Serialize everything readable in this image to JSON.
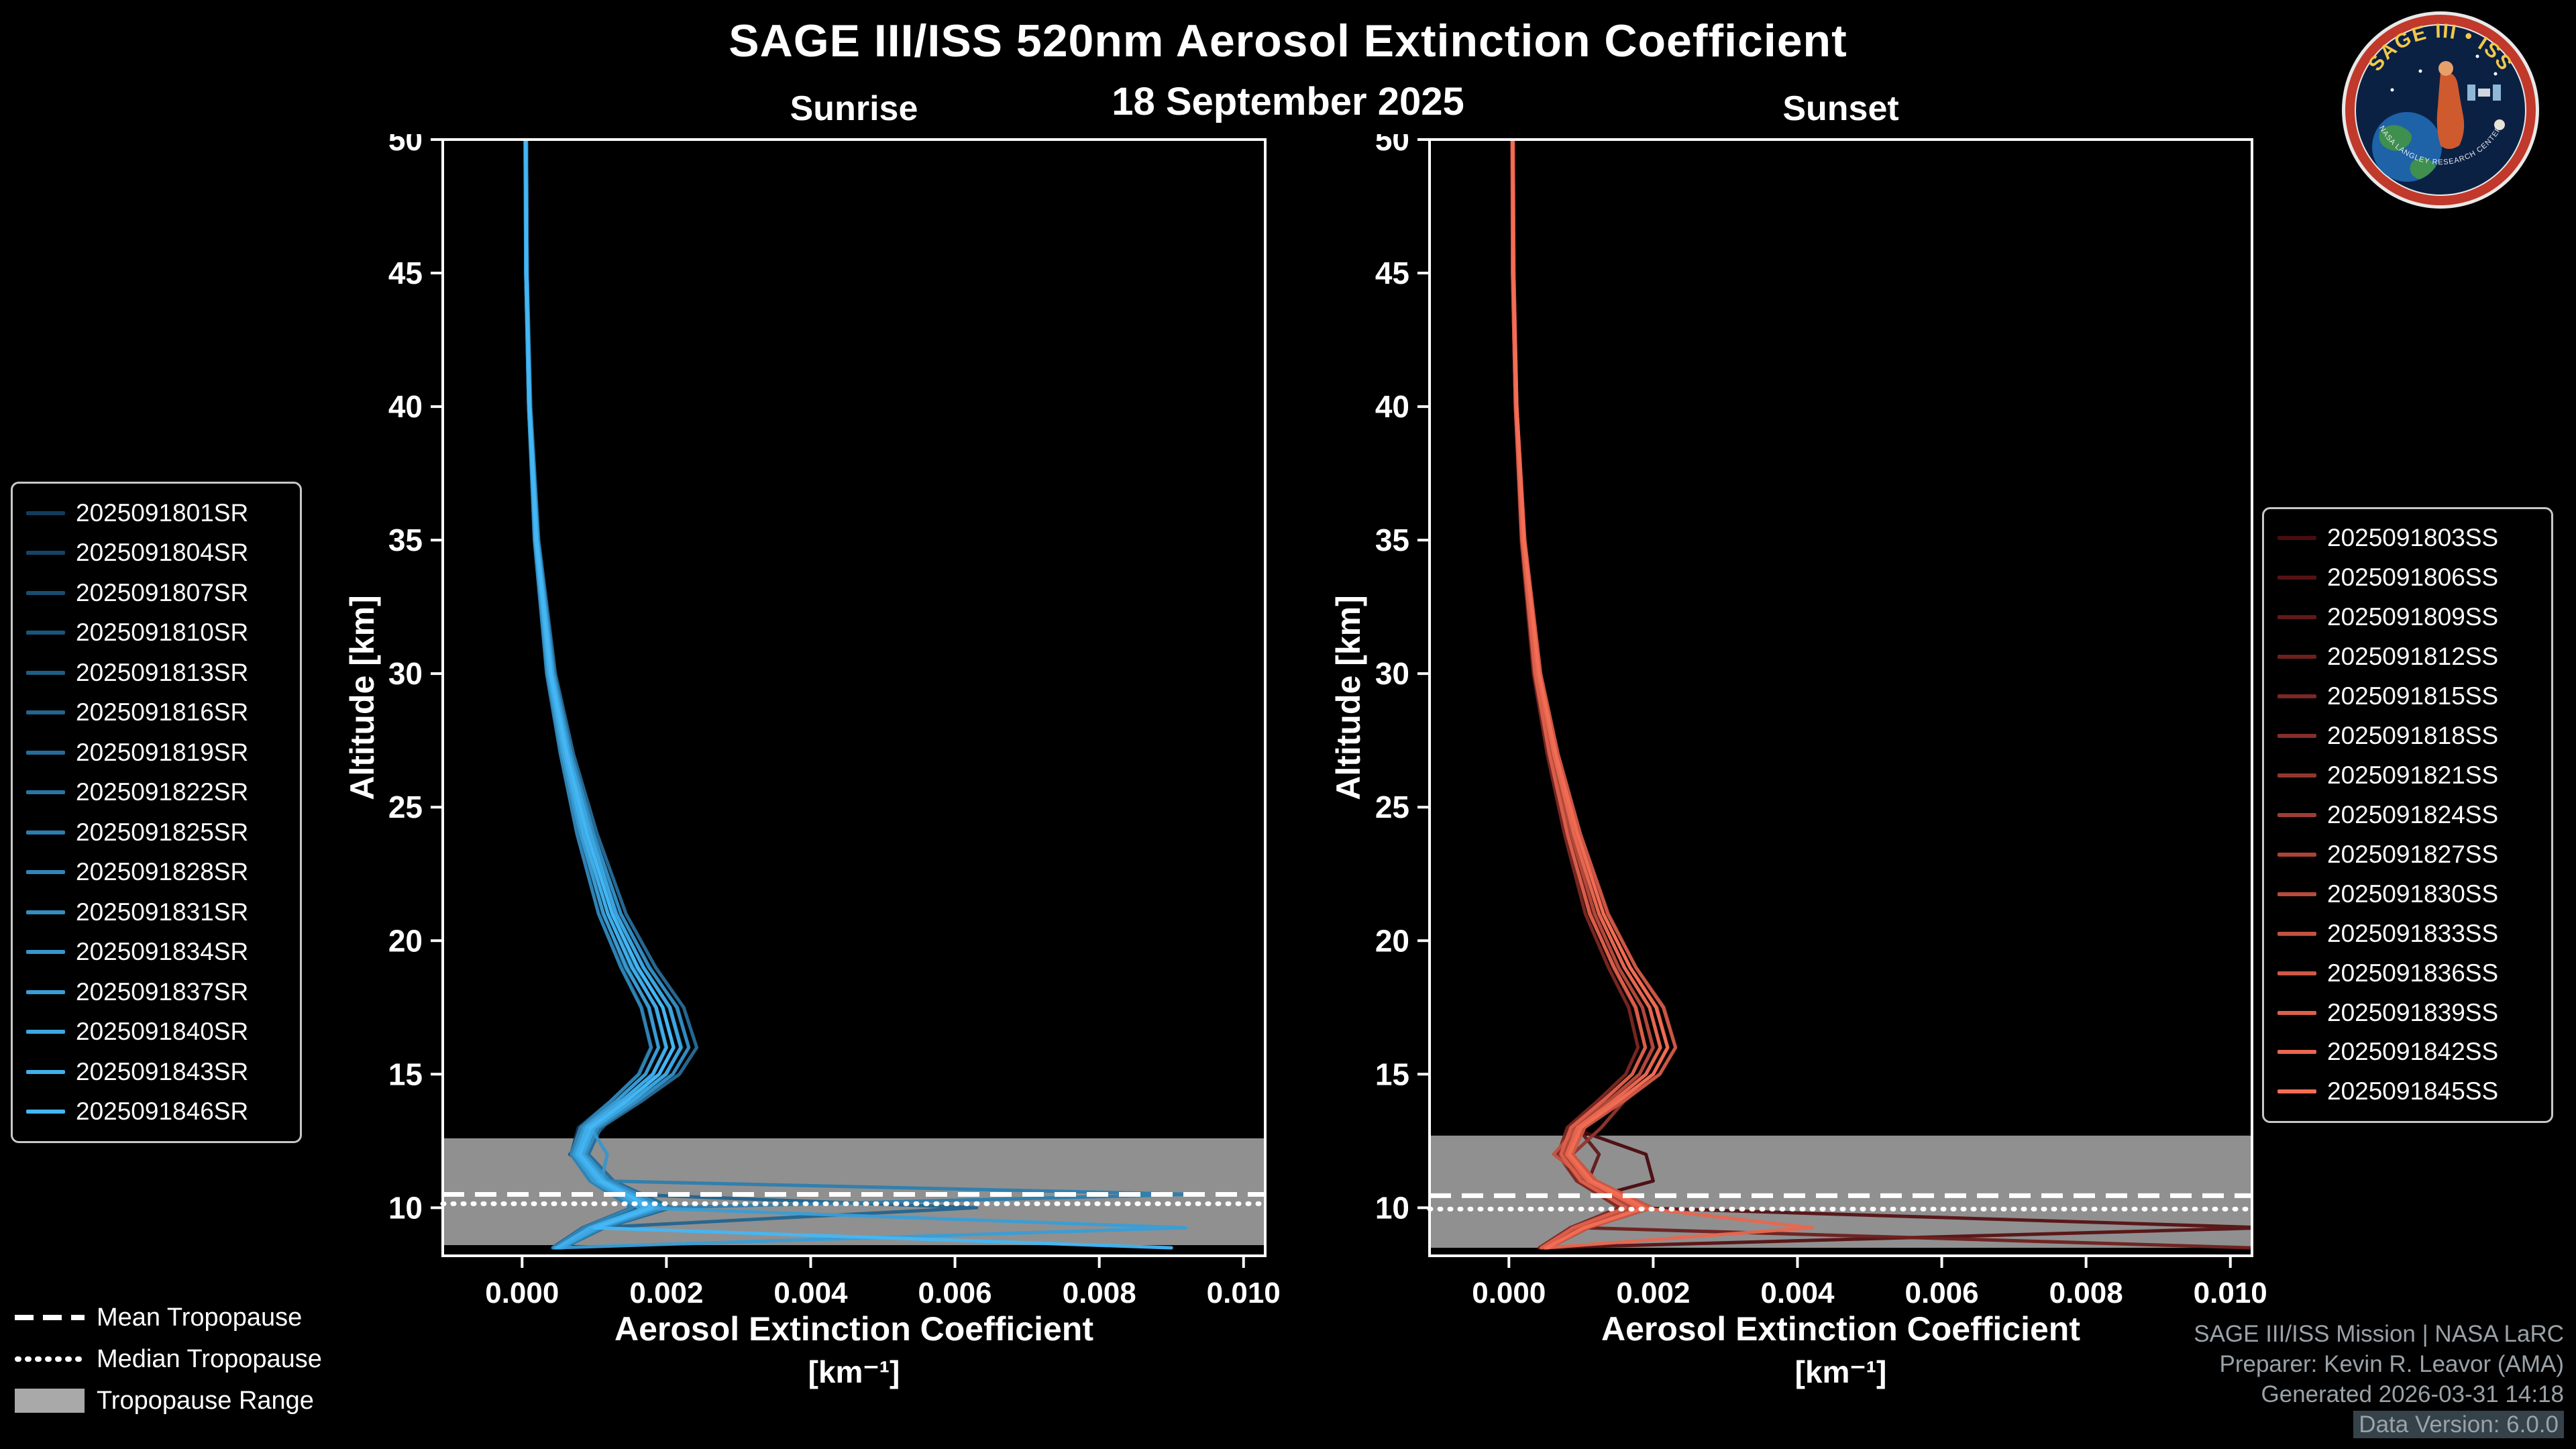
{
  "header": {
    "title": "SAGE III/ISS 520nm Aerosol Extinction Coefficient",
    "date": "18 September 2025"
  },
  "logo": {
    "title": "SAGE III • ISS",
    "bottom_text": "NASA LANGLEY RESEARCH CENTER"
  },
  "tropopause_legend": {
    "items": [
      {
        "label": "Mean Tropopause",
        "style": "dashed"
      },
      {
        "label": "Median Tropopause",
        "style": "dotted"
      },
      {
        "label": "Tropopause Range",
        "style": "filled"
      }
    ],
    "range_color": "#a9a9a9"
  },
  "footer": {
    "lines": [
      "SAGE III/ISS Mission | NASA LaRC",
      "Preparer: Kevin R. Leavor (AMA)",
      "Generated 2026-03-31 14:18",
      "Data Version: 6.0.0"
    ]
  },
  "chart_data": [
    {
      "type": "line",
      "title": "Sunrise",
      "xlabel": "Aerosol Extinction Coefficient",
      "xunit": "[km⁻¹]",
      "ylabel": "Altitude [km]",
      "xlim": [
        -0.0011,
        0.0103
      ],
      "ylim": [
        8.2,
        50
      ],
      "xticks": [
        0.0,
        0.002,
        0.004,
        0.006,
        0.008,
        0.01
      ],
      "xtick_labels": [
        "0.000",
        "0.002",
        "0.004",
        "0.006",
        "0.008",
        "0.010"
      ],
      "yticks": [
        10,
        15,
        20,
        25,
        30,
        35,
        40,
        45,
        50
      ],
      "ytick_labels": [
        "10",
        "15",
        "20",
        "25",
        "30",
        "35",
        "40",
        "45",
        "50"
      ],
      "grid": false,
      "tropopause": {
        "mean": 10.5,
        "median": 10.15,
        "range": [
          8.6,
          12.6
        ]
      },
      "altitudes": [
        50,
        45,
        40,
        35,
        30,
        27,
        24,
        21,
        19,
        17.5,
        16,
        15,
        14,
        13,
        12,
        11,
        10.5,
        10,
        9.25,
        8.5
      ],
      "series": [
        {
          "name": "2025091801SR",
          "color": "#123c5c",
          "values": [
            4e-05,
            5e-05,
            9e-05,
            0.00017,
            0.00034,
            0.00053,
            0.00077,
            0.00106,
            0.00139,
            0.00166,
            0.00178,
            0.00161,
            0.00123,
            0.00078,
            0.00068,
            0.00096,
            0.00125,
            0.00152,
            0.00084,
            0.00042
          ]
        },
        {
          "name": "2025091804SR",
          "color": "#154466",
          "values": [
            5e-05,
            6e-05,
            0.0001,
            0.00019,
            0.00038,
            0.00059,
            0.00086,
            0.00119,
            0.00155,
            0.00185,
            0.00199,
            0.00181,
            0.00138,
            0.00112,
            0.00076,
            0.00107,
            0.00139,
            0.00172,
            0.00094,
            0.00047
          ]
        },
        {
          "name": "2025091807SR",
          "color": "#194c70",
          "values": [
            5e-05,
            6e-05,
            0.00011,
            0.00021,
            0.00042,
            0.00065,
            0.00094,
            0.00131,
            0.00169,
            0.00205,
            0.00221,
            0.00199,
            0.00152,
            0.00099,
            0.00085,
            0.00117,
            0.00153,
            0.00189,
            0.00104,
            0.00052
          ]
        },
        {
          "name": "2025091810SR",
          "color": "#1c557b",
          "values": [
            6e-05,
            7e-05,
            0.00011,
            0.00022,
            0.00044,
            0.00068,
            0.00099,
            0.00137,
            0.00177,
            0.00214,
            0.00231,
            0.00209,
            0.00159,
            0.00104,
            0.00066,
            0.00121,
            0.00159,
            0.00197,
            0.00109,
            0.00054
          ]
        },
        {
          "name": "2025091813SR",
          "color": "#1f5d85",
          "values": [
            5e-05,
            5e-05,
            9e-05,
            0.00018,
            0.00036,
            0.00056,
            0.00081,
            0.00112,
            0.00146,
            0.00175,
            0.00189,
            0.00171,
            0.0013,
            0.00085,
            0.00072,
            0.00101,
            0.00131,
            0.00162,
            0.00089,
            0.00045
          ]
        },
        {
          "name": "2025091816SR",
          "color": "#23658f",
          "values": [
            5e-05,
            6e-05,
            0.0001,
            0.0002,
            0.0004,
            0.00062,
            0.0009,
            0.00125,
            0.00161,
            0.00195,
            0.0021,
            0.0019,
            0.00145,
            0.00094,
            0.0008,
            0.00111,
            0.00146,
            0.0063,
            0.00099,
            0.0005
          ]
        },
        {
          "name": "2025091819SR",
          "color": "#266d99",
          "values": [
            6e-05,
            7e-05,
            0.00012,
            0.00023,
            0.00046,
            0.00071,
            0.00104,
            0.00144,
            0.00185,
            0.00224,
            0.00242,
            0.00218,
            0.00166,
            0.00109,
            0.00092,
            0.00127,
            0.00167,
            0.00207,
            0.00114,
            0.00057
          ]
        },
        {
          "name": "2025091822SR",
          "color": "#2975a3",
          "values": [
            5e-05,
            6e-05,
            0.0001,
            0.00019,
            0.00038,
            0.00059,
            0.00086,
            0.00119,
            0.00153,
            0.00185,
            0.002,
            0.00182,
            0.00158,
            0.0009,
            0.00077,
            0.00106,
            0.00138,
            0.00171,
            0.00095,
            0.00048
          ]
        },
        {
          "name": "2025091825SR",
          "color": "#2d7eae",
          "values": [
            5e-05,
            6e-05,
            0.00011,
            0.00021,
            0.00042,
            0.00065,
            0.00095,
            0.00131,
            0.00168,
            0.00204,
            0.0022,
            0.002,
            0.00152,
            0.001,
            0.00084,
            0.00116,
            0.0093,
            0.00189,
            0.00105,
            0.00052
          ]
        },
        {
          "name": "2025091828SR",
          "color": "#3086b8",
          "values": [
            4e-05,
            5e-05,
            9e-05,
            0.00017,
            0.00034,
            0.00053,
            0.00076,
            0.00106,
            0.00137,
            0.00165,
            0.00179,
            0.00162,
            0.00123,
            0.00081,
            0.00068,
            0.00094,
            0.00123,
            0.00153,
            0.00085,
            0.00043
          ]
        },
        {
          "name": "2025091831SR",
          "color": "#338ec2",
          "values": [
            6e-05,
            7e-05,
            0.00011,
            0.00022,
            0.00044,
            0.00068,
            0.00099,
            0.00137,
            0.00176,
            0.00215,
            0.00231,
            0.00209,
            0.0016,
            0.00105,
            0.00088,
            0.00121,
            0.0016,
            0.00198,
            0.0011,
            0.00055
          ]
        },
        {
          "name": "2025091834SR",
          "color": "#3796cc",
          "values": [
            5e-05,
            6e-05,
            0.0001,
            0.0002,
            0.0004,
            0.00062,
            0.0009,
            0.00125,
            0.0016,
            0.00195,
            0.0021,
            0.0019,
            0.00145,
            0.00095,
            0.00118,
            0.0011,
            0.00145,
            0.0018,
            0.001,
            0.0005
          ]
        },
        {
          "name": "2025091837SR",
          "color": "#3a9ed6",
          "values": [
            5e-05,
            5e-05,
            9e-05,
            0.00018,
            0.00036,
            0.00056,
            0.00081,
            0.00113,
            0.00144,
            0.00176,
            0.00189,
            0.00171,
            0.00131,
            0.00086,
            0.00072,
            0.00099,
            0.00131,
            0.00162,
            0.0092,
            0.00045
          ]
        },
        {
          "name": "2025091840SR",
          "color": "#3da7e1",
          "values": [
            5e-05,
            6e-05,
            0.00011,
            0.00021,
            0.00042,
            0.00065,
            0.00095,
            0.0013,
            0.00168,
            0.00205,
            0.0022,
            0.00199,
            0.00153,
            0.001,
            0.00084,
            0.00115,
            0.00152,
            0.00188,
            0.00104,
            0.00053
          ]
        },
        {
          "name": "2025091843SR",
          "color": "#41afeb",
          "values": [
            5e-05,
            6e-05,
            0.0001,
            0.00019,
            0.00038,
            0.00059,
            0.00085,
            0.00119,
            0.00152,
            0.00186,
            0.002,
            0.00181,
            0.00138,
            0.0009,
            0.00076,
            0.00105,
            0.00138,
            0.00171,
            0.00094,
            0.00048
          ]
        },
        {
          "name": "2025091846SR",
          "color": "#44b7f5",
          "values": [
            5e-05,
            6e-05,
            0.0001,
            0.0002,
            0.0004,
            0.00062,
            0.0009,
            0.00125,
            0.0016,
            0.00195,
            0.0021,
            0.0019,
            0.00145,
            0.00095,
            0.0008,
            0.0011,
            0.00145,
            0.0018,
            0.001,
            0.009
          ]
        }
      ]
    },
    {
      "type": "line",
      "title": "Sunset",
      "xlabel": "Aerosol Extinction Coefficient",
      "xunit": "[km⁻¹]",
      "ylabel": "Altitude [km]",
      "xlim": [
        -0.0011,
        0.0103
      ],
      "ylim": [
        8.2,
        50
      ],
      "xticks": [
        0.0,
        0.002,
        0.004,
        0.006,
        0.008,
        0.01
      ],
      "xtick_labels": [
        "0.000",
        "0.002",
        "0.004",
        "0.006",
        "0.008",
        "0.010"
      ],
      "yticks": [
        10,
        15,
        20,
        25,
        30,
        35,
        40,
        45,
        50
      ],
      "ytick_labels": [
        "10",
        "15",
        "20",
        "25",
        "30",
        "35",
        "40",
        "45",
        "50"
      ],
      "grid": false,
      "tropopause": {
        "mean": 10.45,
        "median": 9.95,
        "range": [
          8.5,
          12.7
        ]
      },
      "altitudes": [
        50,
        45,
        40,
        35,
        30,
        27,
        24,
        21,
        19,
        17.5,
        16,
        15,
        14,
        13,
        12,
        11,
        10.5,
        10,
        9.25,
        8.5
      ],
      "series": [
        {
          "name": "2025091803SS",
          "color": "#4a0b0f",
          "values": [
            5e-05,
            5e-05,
            9e-05,
            0.00018,
            0.00036,
            0.00056,
            0.00081,
            0.00112,
            0.00145,
            0.00175,
            0.00189,
            0.00171,
            0.0013,
            0.00086,
            0.0019,
            0.002,
            0.00131,
            0.00162,
            0.0009,
            0.00045
          ]
        },
        {
          "name": "2025091806SS",
          "color": "#561214",
          "values": [
            5e-05,
            6e-05,
            0.0001,
            0.00019,
            0.00038,
            0.00059,
            0.00086,
            0.00118,
            0.00152,
            0.00185,
            0.00199,
            0.00181,
            0.00138,
            0.0009,
            0.00077,
            0.00105,
            0.00139,
            0.00171,
            0.0105,
            0.00047
          ]
        },
        {
          "name": "2025091809SS",
          "color": "#621919",
          "values": [
            5e-05,
            6e-05,
            0.0001,
            0.0002,
            0.0004,
            0.00062,
            0.0009,
            0.00125,
            0.0016,
            0.00195,
            0.0021,
            0.0019,
            0.00145,
            0.00095,
            0.00125,
            0.0011,
            0.00145,
            0.0018,
            0.001,
            0.0005
          ]
        },
        {
          "name": "2025091812SS",
          "color": "#6e201e",
          "values": [
            5e-05,
            6e-05,
            0.00011,
            0.00021,
            0.00042,
            0.00065,
            0.00094,
            0.00131,
            0.00168,
            0.00204,
            0.0022,
            0.002,
            0.00152,
            0.001,
            0.00084,
            0.00116,
            0.00152,
            0.00189,
            0.00105,
            0.0103
          ]
        },
        {
          "name": "2025091815SS",
          "color": "#7b2723",
          "values": [
            4e-05,
            5e-05,
            9e-05,
            0.00017,
            0.00034,
            0.00053,
            0.00077,
            0.00106,
            0.00138,
            0.00166,
            0.00179,
            0.00162,
            0.00123,
            0.00081,
            0.00068,
            0.00094,
            0.00124,
            0.00153,
            0.00085,
            0.00042
          ]
        },
        {
          "name": "2025091818SS",
          "color": "#872e28",
          "values": [
            5e-05,
            6e-05,
            0.0001,
            0.0002,
            0.0004,
            0.00062,
            0.0009,
            0.00125,
            0.0016,
            0.00195,
            0.0021,
            0.0019,
            0.00145,
            0.00095,
            0.0008,
            0.0011,
            0.00145,
            0.0018,
            0.001,
            0.0005
          ]
        },
        {
          "name": "2025091821SS",
          "color": "#93362d",
          "values": [
            6e-05,
            7e-05,
            0.00011,
            0.00022,
            0.00044,
            0.00068,
            0.00099,
            0.00138,
            0.00176,
            0.00215,
            0.00231,
            0.00209,
            0.0016,
            0.00128,
            0.00088,
            0.00121,
            0.00159,
            0.00198,
            0.0011,
            0.00055
          ]
        },
        {
          "name": "2025091824SS",
          "color": "#9f3d32",
          "values": [
            5e-05,
            5e-05,
            9e-05,
            0.00018,
            0.00036,
            0.00056,
            0.00081,
            0.00113,
            0.00145,
            0.00175,
            0.00189,
            0.00171,
            0.00131,
            0.00086,
            0.00072,
            0.00099,
            0.0013,
            0.00162,
            0.0009,
            0.00045
          ]
        },
        {
          "name": "2025091827SS",
          "color": "#ab4437",
          "values": [
            5e-05,
            6e-05,
            0.00011,
            0.00021,
            0.00042,
            0.00065,
            0.00095,
            0.00131,
            0.00168,
            0.00205,
            0.0022,
            0.002,
            0.00152,
            0.001,
            0.00084,
            0.00116,
            0.00152,
            0.00189,
            0.00104,
            0.00052
          ]
        },
        {
          "name": "2025091830SS",
          "color": "#b74b3c",
          "values": [
            5e-05,
            6e-05,
            0.0001,
            0.00019,
            0.00038,
            0.00059,
            0.00086,
            0.00119,
            0.00152,
            0.00185,
            0.002,
            0.00181,
            0.00138,
            0.0009,
            0.00076,
            0.00105,
            0.00138,
            0.00171,
            0.00094,
            0.00048
          ]
        },
        {
          "name": "2025091833SS",
          "color": "#c35241",
          "values": [
            5e-05,
            6e-05,
            0.0001,
            0.0002,
            0.0004,
            0.00062,
            0.0009,
            0.00125,
            0.0016,
            0.00195,
            0.0021,
            0.0019,
            0.00145,
            0.00095,
            0.00062,
            0.0011,
            0.00145,
            0.0018,
            0.001,
            0.0005
          ]
        },
        {
          "name": "2025091836SS",
          "color": "#cf5946",
          "values": [
            6e-05,
            7e-05,
            0.00011,
            0.00022,
            0.00044,
            0.00068,
            0.00099,
            0.00137,
            0.00176,
            0.00214,
            0.00231,
            0.00209,
            0.00159,
            0.00105,
            0.00088,
            0.00121,
            0.00159,
            0.00197,
            0.00109,
            0.00055
          ]
        },
        {
          "name": "2025091839SS",
          "color": "#dc604b",
          "values": [
            5e-05,
            5e-05,
            9e-05,
            0.00018,
            0.00036,
            0.00056,
            0.00081,
            0.00112,
            0.00146,
            0.00176,
            0.00189,
            0.00171,
            0.0013,
            0.00086,
            0.00072,
            0.001,
            0.00131,
            0.00162,
            0.00089,
            0.00045
          ]
        },
        {
          "name": "2025091842SS",
          "color": "#e86750",
          "values": [
            5e-05,
            6e-05,
            0.0001,
            0.0002,
            0.0004,
            0.00062,
            0.0009,
            0.00125,
            0.0016,
            0.00195,
            0.0021,
            0.0019,
            0.00145,
            0.00095,
            0.0008,
            0.0011,
            0.00145,
            0.0018,
            0.0042,
            0.0005
          ]
        },
        {
          "name": "2025091845SS",
          "color": "#f46e55",
          "values": [
            5e-05,
            6e-05,
            0.00011,
            0.00021,
            0.00042,
            0.00065,
            0.00095,
            0.00131,
            0.00168,
            0.00204,
            0.0022,
            0.002,
            0.00152,
            0.001,
            0.00084,
            0.00115,
            0.00152,
            0.00188,
            0.00104,
            0.00052
          ]
        }
      ]
    }
  ]
}
